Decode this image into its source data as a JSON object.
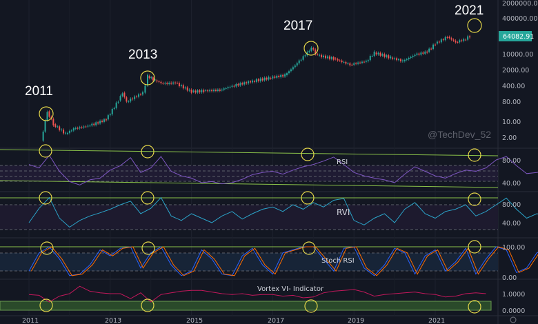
{
  "chart_data": [
    {
      "type": "line",
      "title": "Price (log scale)",
      "y_ticks": [
        "2000000.00",
        "400000.00",
        "10000.00",
        "2000.00",
        "400.00",
        "80.00",
        "10.00",
        "2.00"
      ],
      "last_price_label": "64082.91",
      "x_ticks": [
        "2011",
        "2013",
        "2015",
        "2017",
        "2019",
        "2021"
      ],
      "annotations": [
        "2011",
        "2013",
        "2017",
        "2021"
      ],
      "watermark": "@TechDev_52",
      "x": [
        2011.3,
        2011.45,
        2011.6,
        2011.9,
        2012.1,
        2012.5,
        2012.9,
        2013.2,
        2013.3,
        2013.4,
        2013.8,
        2013.92,
        2014.1,
        2014.3,
        2014.6,
        2015.0,
        2015.3,
        2015.7,
        2016.0,
        2016.5,
        2016.9,
        2017.3,
        2017.6,
        2017.95,
        2018.1,
        2018.5,
        2018.9,
        2019.3,
        2019.5,
        2019.9,
        2020.2,
        2020.5,
        2020.8,
        2021.0,
        2021.3,
        2021.5,
        2021.7,
        2021.85
      ],
      "values": [
        1.5,
        30,
        8,
        3,
        5,
        7,
        13,
        90,
        200,
        80,
        200,
        1100,
        700,
        500,
        550,
        220,
        240,
        260,
        400,
        650,
        900,
        1200,
        4000,
        19000,
        9000,
        6500,
        3500,
        5000,
        12000,
        7200,
        5000,
        9500,
        13000,
        30000,
        60000,
        35000,
        45000,
        64082.91
      ]
    },
    {
      "type": "line",
      "title": "RSI",
      "y_ticks": [
        "80.00",
        "40.00"
      ],
      "ylim": [
        20,
        100
      ],
      "x_start": 2011.0,
      "x_step": 0.25,
      "values": [
        72,
        66,
        88,
        60,
        42,
        36,
        45,
        48,
        62,
        70,
        84,
        58,
        66,
        86,
        60,
        52,
        48,
        40,
        42,
        38,
        40,
        46,
        54,
        58,
        60,
        55,
        62,
        68,
        72,
        78,
        85,
        72,
        58,
        52,
        48,
        45,
        40,
        55,
        68,
        60,
        52,
        48,
        56,
        62,
        60,
        66,
        80,
        86,
        70,
        56,
        58,
        62,
        68,
        72,
        66,
        70
      ]
    },
    {
      "type": "line",
      "title": "RVI",
      "y_ticks": [
        "80.00",
        "40.00"
      ],
      "ylim": [
        20,
        100
      ],
      "x_start": 2011.0,
      "x_step": 0.25,
      "values": [
        40,
        72,
        96,
        50,
        30,
        45,
        55,
        62,
        70,
        80,
        88,
        60,
        72,
        96,
        55,
        45,
        60,
        50,
        40,
        55,
        65,
        48,
        60,
        70,
        75,
        65,
        80,
        70,
        85,
        75,
        90,
        94,
        45,
        35,
        50,
        60,
        40,
        70,
        85,
        60,
        50,
        65,
        70,
        80,
        55,
        65,
        80,
        95,
        70,
        50,
        60,
        55,
        62,
        70,
        80,
        85
      ]
    },
    {
      "type": "line",
      "title": "Stoch RSI",
      "y_ticks": [
        "100.00",
        "0.00"
      ],
      "ylim": [
        0,
        100
      ],
      "x_start": 2011.0,
      "x_step": 0.25,
      "values": [
        20,
        80,
        100,
        60,
        5,
        10,
        40,
        90,
        70,
        95,
        100,
        30,
        80,
        100,
        40,
        5,
        20,
        90,
        60,
        10,
        5,
        70,
        95,
        40,
        10,
        80,
        90,
        100,
        100,
        60,
        20,
        95,
        100,
        30,
        5,
        40,
        95,
        80,
        10,
        70,
        90,
        20,
        50,
        95,
        10,
        60,
        100,
        90,
        15,
        30,
        80,
        95,
        40,
        10,
        60,
        100
      ]
    },
    {
      "type": "line",
      "title": "Vortex VI- Indicator",
      "y_ticks": [
        "1.0000",
        "0.0000"
      ],
      "ylim": [
        0,
        1.6
      ],
      "x_start": 2011.0,
      "x_step": 0.25,
      "values": [
        0.95,
        0.9,
        0.5,
        0.85,
        1.0,
        1.45,
        1.15,
        1.05,
        1.0,
        1.0,
        0.7,
        1.05,
        0.5,
        0.95,
        1.05,
        1.15,
        1.2,
        1.2,
        1.1,
        1.0,
        0.95,
        1.0,
        0.9,
        0.95,
        0.95,
        0.85,
        0.9,
        0.75,
        0.8,
        1.05,
        1.15,
        1.2,
        1.25,
        1.1,
        0.85,
        0.95,
        1.0,
        1.05,
        1.1,
        1.0,
        0.95,
        0.8,
        0.85,
        1.0,
        1.05,
        1.0
      ]
    }
  ],
  "colors": {
    "up": "#26a69a",
    "down": "#ef5350",
    "rsi": "#7e57c2",
    "rvi": "#2ba3c8",
    "stoch_k": "#2962ff",
    "stoch_d": "#ff6d00",
    "vortex": "#c2185b",
    "trend": "#8bc34a",
    "circle": "#e6d84a",
    "price_tag": "#26a69a"
  }
}
